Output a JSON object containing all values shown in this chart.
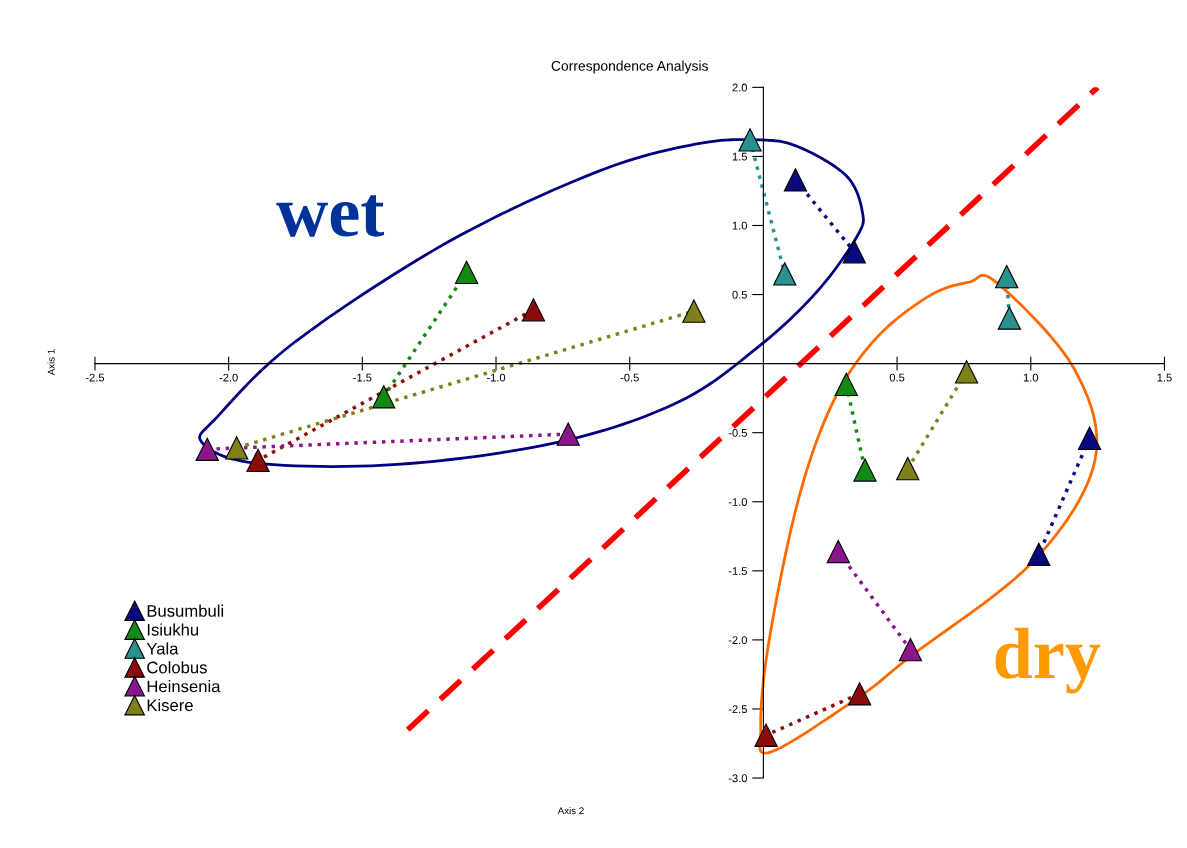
{
  "chart_data": {
    "type": "line",
    "title": "Correspondence Analysis",
    "xlabel": "Axis 2",
    "ylabel": "Axis 1",
    "marker": "triangle",
    "line_style": "dotted",
    "legend": "bottom left",
    "grid": false,
    "xlim": [
      -2.5,
      1.5
    ],
    "ylim": [
      -3.0,
      2.0
    ],
    "xticks": [
      {
        "value": -2.5,
        "label": "-2.5"
      },
      {
        "value": -2.0,
        "label": "-2.0"
      },
      {
        "value": -1.5,
        "label": "-1.5"
      },
      {
        "value": -1.0,
        "label": "-1.0"
      },
      {
        "value": -0.5,
        "label": "-0.5"
      },
      {
        "value": 0.5,
        "label": "0.5"
      },
      {
        "value": 1.0,
        "label": "1.0"
      },
      {
        "value": 1.5,
        "label": "1.5"
      }
    ],
    "yticks": [
      {
        "value": 2.0,
        "label": "2.0"
      },
      {
        "value": 1.5,
        "label": "1.5"
      },
      {
        "value": 1.0,
        "label": "1.0"
      },
      {
        "value": 0.5,
        "label": "0.5"
      },
      {
        "value": -0.5,
        "label": "-0.5"
      },
      {
        "value": -1.0,
        "label": "-1.0"
      },
      {
        "value": -1.5,
        "label": "-1.5"
      },
      {
        "value": -2.0,
        "label": "-2.0"
      },
      {
        "value": -2.5,
        "label": "-2.5"
      },
      {
        "value": -3.0,
        "label": "-3.0"
      }
    ],
    "series": [
      {
        "name": "Busumbuli",
        "color": "#0a0a80",
        "x": [
          0.12,
          0.34,
          null,
          1.22,
          1.03
        ],
        "values": [
          1.33,
          0.81,
          null,
          -0.54,
          -1.38
        ]
      },
      {
        "name": "Isiukhu",
        "color": "#138a13",
        "x": [
          -1.11,
          -1.42,
          null,
          0.31,
          0.38
        ],
        "values": [
          0.66,
          -0.24,
          null,
          -0.15,
          -0.77
        ]
      },
      {
        "name": "Yala",
        "color": "#2a9090",
        "x": [
          -0.05,
          0.08,
          null,
          0.91,
          0.92
        ],
        "values": [
          1.62,
          0.65,
          null,
          0.63,
          0.33
        ]
      },
      {
        "name": "Colobus",
        "color": "#8b0a0a",
        "x": [
          -0.86,
          -1.89,
          null,
          0.36,
          0.01
        ],
        "values": [
          0.39,
          -0.7,
          null,
          -2.39,
          -2.69
        ]
      },
      {
        "name": "Heinsenia",
        "color": "#8a168a",
        "x": [
          -2.08,
          -0.73,
          null,
          0.28,
          0.55
        ],
        "values": [
          -0.62,
          -0.51,
          null,
          -1.36,
          -2.07
        ]
      },
      {
        "name": "Kisere",
        "color": "#80801a",
        "x": [
          -1.97,
          -0.26,
          null,
          0.76,
          0.54
        ],
        "values": [
          -0.61,
          0.38,
          null,
          -0.06,
          -0.76
        ]
      },
      {
        "color": "#ff0000",
        "line_style": "dashed",
        "marker": "none",
        "x": [
          -1.33,
          1.25
        ],
        "values": [
          -2.65,
          2.0
        ]
      }
    ],
    "annotations": [
      "wet",
      "dry"
    ]
  }
}
